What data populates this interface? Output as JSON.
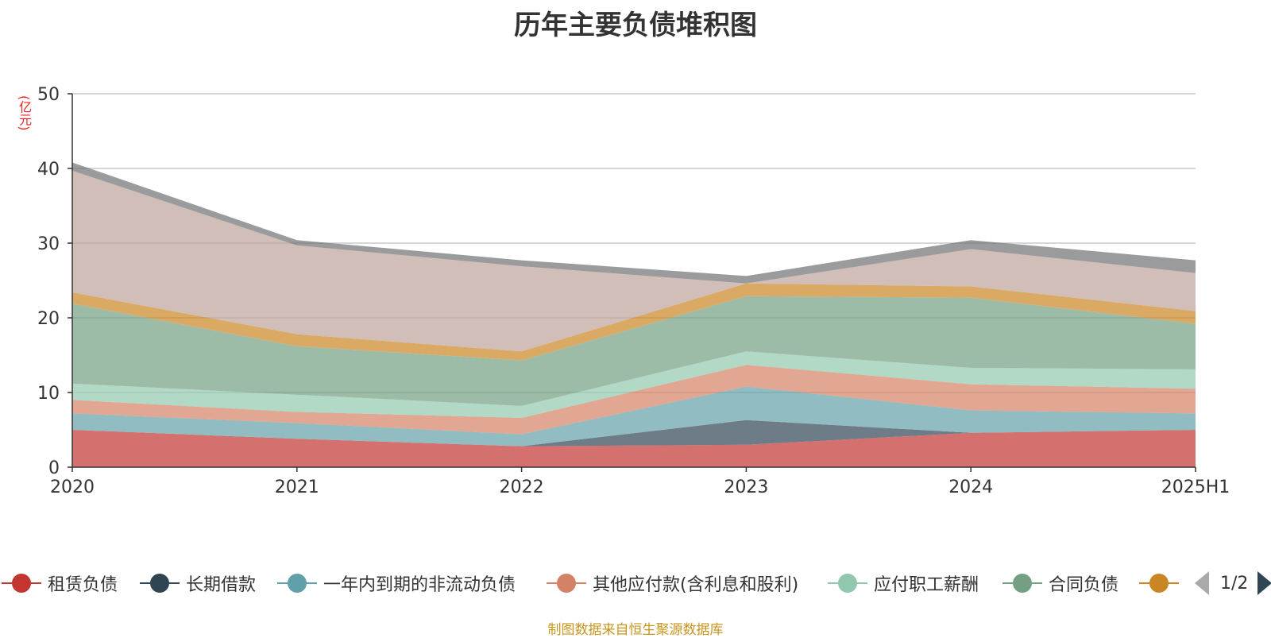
{
  "title": "历年主要负债堆积图",
  "unit": "(亿元)",
  "source": "制图数据来自恒生聚源数据库",
  "pager": "1/2",
  "chart_data": {
    "type": "area",
    "stacked": true,
    "categories": [
      "2020",
      "2021",
      "2022",
      "2023",
      "2024",
      "2025H1"
    ],
    "y_ticks": [
      "0",
      "10",
      "20",
      "30",
      "40",
      "50"
    ],
    "ylim": [
      0,
      50
    ],
    "grid": true,
    "legend_position": "bottom",
    "series": [
      {
        "name": "租赁负债",
        "color": "#c23531",
        "values": [
          5.0,
          3.8,
          2.8,
          3.0,
          4.6,
          5.0
        ]
      },
      {
        "name": "长期借款",
        "color": "#2f4554",
        "values": [
          0.0,
          0.0,
          0.0,
          3.3,
          0.0,
          0.0
        ]
      },
      {
        "name": "一年内到期的非流动负债",
        "color": "#61a0a8",
        "values": [
          2.2,
          2.1,
          1.6,
          4.5,
          3.0,
          2.2
        ]
      },
      {
        "name": "其他应付款(含利息和股利)",
        "color": "#d48265",
        "values": [
          1.8,
          1.5,
          2.2,
          2.9,
          3.5,
          3.3
        ]
      },
      {
        "name": "应付职工薪酬",
        "color": "#91c7ae",
        "values": [
          2.2,
          2.3,
          1.6,
          1.8,
          2.2,
          2.6
        ]
      },
      {
        "name": "合同负债",
        "color": "#749f83",
        "values": [
          10.7,
          6.5,
          6.1,
          7.4,
          9.4,
          6.1
        ]
      },
      {
        "name": "",
        "color": "#ca8622",
        "values": [
          1.5,
          1.6,
          1.2,
          1.7,
          1.5,
          1.7
        ]
      },
      {
        "name": "",
        "color": "#bda29a",
        "values": [
          16.3,
          11.9,
          11.4,
          0.0,
          5.0,
          5.1
        ]
      },
      {
        "name": "",
        "color": "#6e7074",
        "values": [
          1.1,
          0.7,
          0.8,
          1.0,
          1.2,
          1.7
        ]
      }
    ]
  },
  "legend": {
    "visible_items": [
      {
        "label": "租赁负债",
        "color": "#c23531"
      },
      {
        "label": "长期借款",
        "color": "#2f4554"
      },
      {
        "label": "一年内到期的非流动负债",
        "color": "#61a0a8"
      },
      {
        "label": "其他应付款(含利息和股利)",
        "color": "#d48265"
      },
      {
        "label": "应付职工薪酬",
        "color": "#91c7ae"
      },
      {
        "label": "合同负债",
        "color": "#749f83"
      },
      {
        "label": "",
        "color": "#ca8622"
      }
    ]
  }
}
